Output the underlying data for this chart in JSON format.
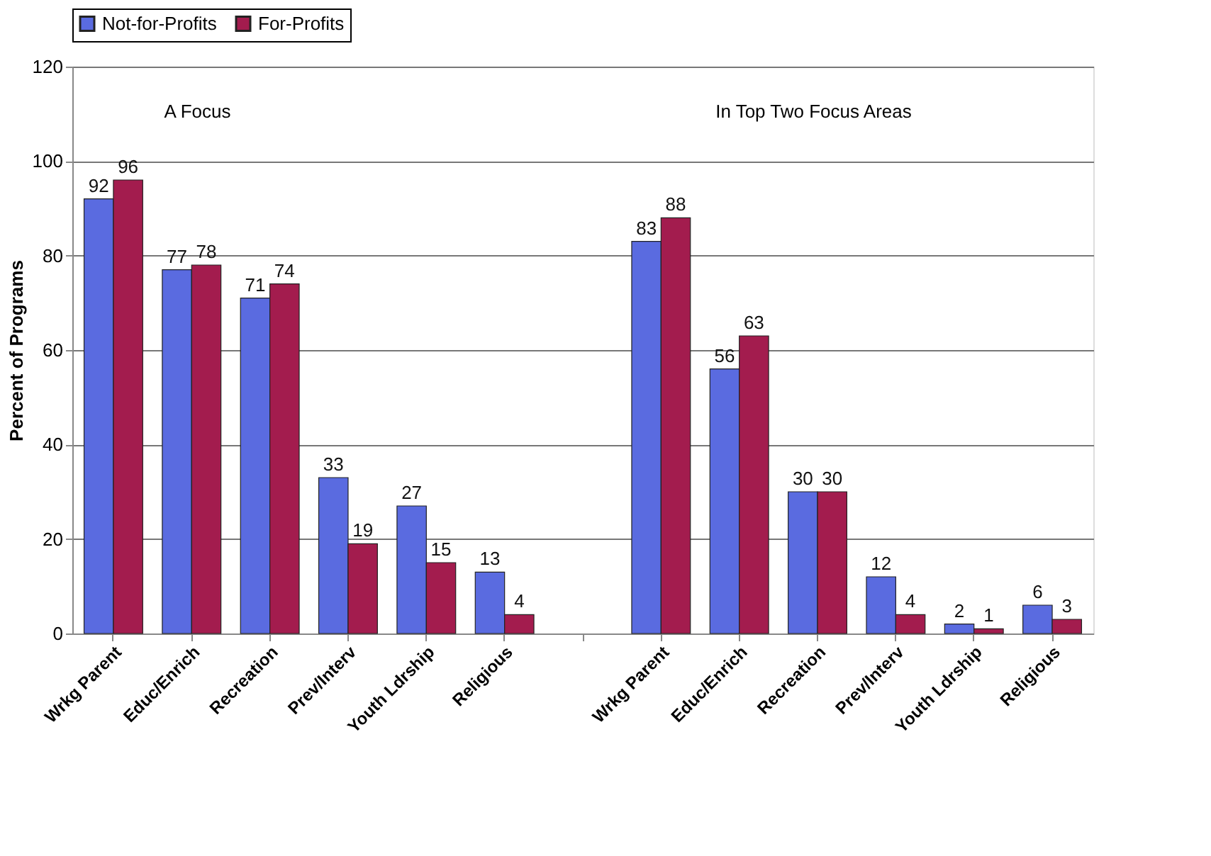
{
  "chart_data": {
    "type": "bar",
    "categories": [
      "Wrkg Parent",
      "Educ/Enrich",
      "Recreation",
      "Prev/Interv",
      "Youth Ldrship",
      "Religious",
      null,
      "Wrkg Parent",
      "Educ/Enrich",
      "Recreation",
      "Prev/Interv",
      "Youth Ldrship",
      "Religious"
    ],
    "series": [
      {
        "name": "Not-for-Profits",
        "color": "#5a6be0",
        "values": [
          92,
          77,
          71,
          33,
          27,
          13,
          null,
          83,
          56,
          30,
          12,
          2,
          6
        ]
      },
      {
        "name": "For-Profits",
        "color": "#a31c4e",
        "values": [
          96,
          78,
          74,
          19,
          15,
          4,
          null,
          88,
          63,
          30,
          4,
          1,
          3
        ]
      }
    ],
    "ylabel": "Percent of Programs",
    "ylim": [
      0,
      120
    ],
    "yticks": [
      0,
      20,
      40,
      60,
      80,
      100,
      120
    ],
    "annotations": [
      "A Focus",
      "In Top Two Focus Areas"
    ],
    "data_labels": true,
    "grid": "y",
    "legend": "top"
  }
}
